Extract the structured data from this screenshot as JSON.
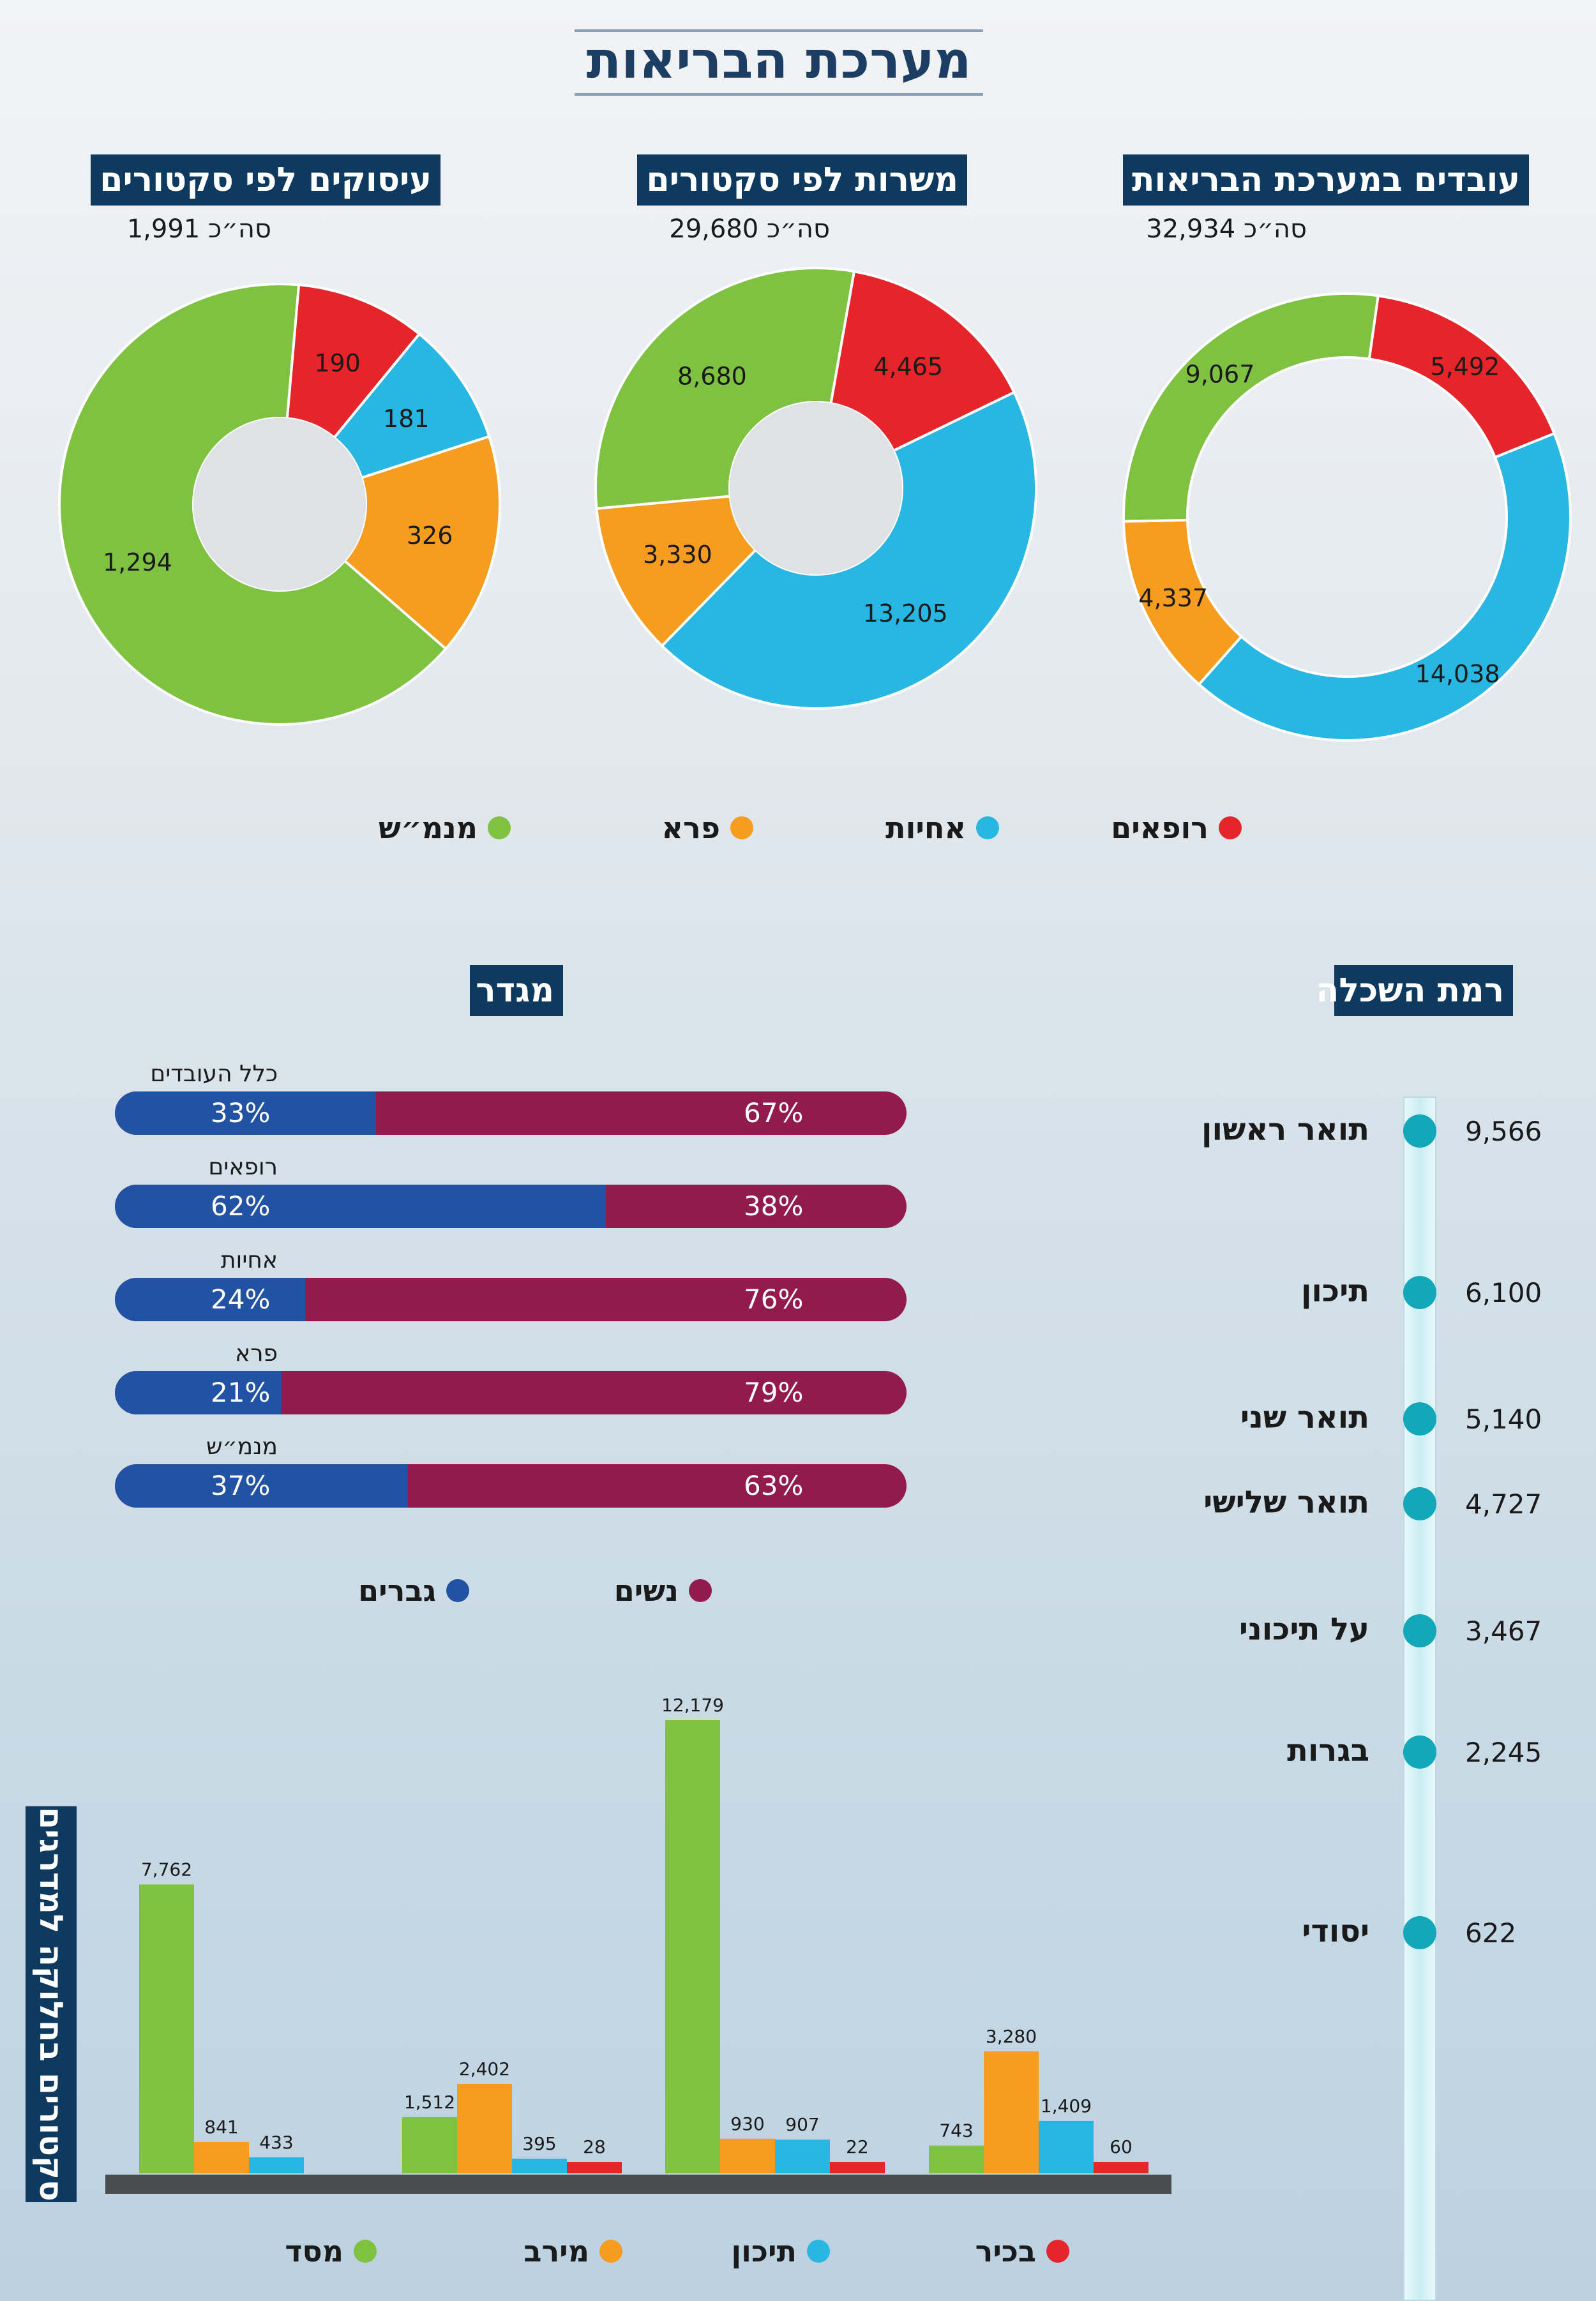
{
  "title": "מערכת הבריאות",
  "colors": {
    "doctors": "#e5252a",
    "nurses": "#28b6e3",
    "para": "#f69c1f",
    "admin": "#7fc241",
    "women": "#921a4d",
    "men": "#2152a4",
    "teal": "#12a8b9"
  },
  "donuts": {
    "workers": {
      "heading": "עובדים במערכת הבריאות",
      "total_text": "סה״כ 32,934"
    },
    "positions": {
      "heading": "משרות לפי סקטורים",
      "total_text": "סה״כ 29,680"
    },
    "employees": {
      "heading": "עיסוקים לפי סקטורים",
      "total_text": "סה״כ 1,991"
    }
  },
  "sector_legend": [
    "רופאים",
    "אחיות",
    "פרא",
    "מנמ״ש"
  ],
  "gender": {
    "heading": "מגדר",
    "legend_women": "נשים",
    "legend_men": "גברים",
    "rows": [
      {
        "label": "כלל העובדים",
        "men": 33,
        "women": 67,
        "men_text": "33%",
        "women_text": "67%"
      },
      {
        "label": "רופאים",
        "men": 62,
        "women": 38,
        "men_text": "62%",
        "women_text": "38%"
      },
      {
        "label": "אחיות",
        "men": 24,
        "women": 76,
        "men_text": "24%",
        "women_text": "76%"
      },
      {
        "label": "פרא",
        "men": 21,
        "women": 79,
        "men_text": "21%",
        "women_text": "79%"
      },
      {
        "label": "מנמ״ש",
        "men": 37,
        "women": 63,
        "men_text": "37%",
        "women_text": "63%"
      }
    ]
  },
  "education": {
    "heading": "רמת השכלה",
    "levels": [
      {
        "label": "תואר ראשון",
        "value": "9,566"
      },
      {
        "label": "תיכון",
        "value": "6,100"
      },
      {
        "label": "תואר שני",
        "value": "5,140"
      },
      {
        "label": "תואר שלישי",
        "value": "4,727"
      },
      {
        "label": "על תיכוני",
        "value": "3,467"
      },
      {
        "label": "בגרות",
        "value": "2,245"
      },
      {
        "label": "יסודי",
        "value": "622"
      }
    ]
  },
  "ranks": {
    "heading": "סקטורים בחלוקה למדרגים",
    "legend": [
      "מסד",
      "מירב",
      "תיכון",
      "בכיר"
    ]
  },
  "chart_data": [
    {
      "type": "pie",
      "title": "עובדים במערכת הבריאות",
      "categories": [
        "רופאים",
        "אחיות",
        "פרא",
        "מנמ״ש"
      ],
      "values": [
        5492,
        14038,
        4337,
        9067
      ],
      "labels": [
        "5,492",
        "14,038",
        "4,337",
        "9,067"
      ],
      "total": 32934
    },
    {
      "type": "pie",
      "title": "משרות לפי סקטורים",
      "categories": [
        "רופאים",
        "אחיות",
        "פרא",
        "מנמ״ש"
      ],
      "values": [
        4465,
        13205,
        3330,
        8680
      ],
      "labels": [
        "4,465",
        "13,205",
        "3,330",
        "8,680"
      ],
      "total": 29680
    },
    {
      "type": "pie",
      "title": "עיסוקים לפי סקטורים",
      "categories": [
        "רופאים",
        "אחיות",
        "פרא",
        "מנמ״ש"
      ],
      "values": [
        190,
        181,
        326,
        1294
      ],
      "labels": [
        "190",
        "181",
        "326",
        "1,294"
      ],
      "total": 1991
    },
    {
      "type": "bar",
      "title": "מגדר",
      "categories": [
        "כלל העובדים",
        "רופאים",
        "אחיות",
        "פרא",
        "מנמ״ש"
      ],
      "series": [
        {
          "name": "גברים",
          "values": [
            33,
            62,
            24,
            21,
            37
          ]
        },
        {
          "name": "נשים",
          "values": [
            67,
            38,
            76,
            79,
            63
          ]
        }
      ]
    },
    {
      "type": "bar",
      "title": "רמת השכלה",
      "categories": [
        "תואר ראשון",
        "תיכון",
        "תואר שני",
        "תואר שלישי",
        "על תיכוני",
        "בגרות",
        "יסודי"
      ],
      "values": [
        9566,
        6100,
        5140,
        4727,
        3467,
        2245,
        622
      ]
    },
    {
      "type": "bar",
      "title": "סקטורים בחלוקה למדרגים",
      "categories": [
        "group1",
        "group2",
        "group3",
        "group4"
      ],
      "series": [
        {
          "name": "מסד",
          "values": [
            7762,
            1512,
            12179,
            743
          ],
          "labels": [
            "7,762",
            "1,512",
            "12,179",
            "743"
          ]
        },
        {
          "name": "מירב",
          "values": [
            841,
            2402,
            930,
            3280
          ],
          "labels": [
            "841",
            "2,402",
            "930",
            "3,280"
          ]
        },
        {
          "name": "תיכון",
          "values": [
            433,
            395,
            907,
            1409
          ],
          "labels": [
            "433",
            "395",
            "907",
            "1,409"
          ]
        },
        {
          "name": "בכיר",
          "values": [
            0,
            28,
            22,
            60
          ],
          "labels": [
            "",
            "28",
            "22",
            "60"
          ]
        }
      ],
      "ylim": [
        0,
        12179
      ]
    }
  ]
}
